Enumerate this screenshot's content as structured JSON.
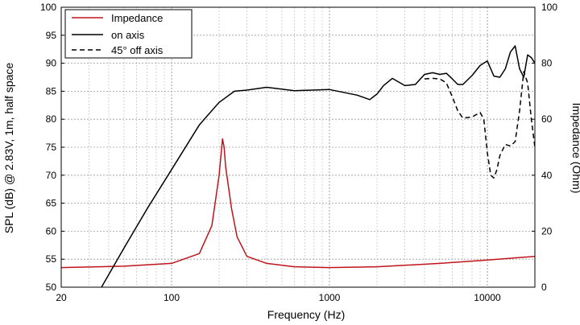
{
  "chart_data": {
    "type": "line",
    "x_scale": "log",
    "xlabel": "Frequency (Hz)",
    "ylabel": "SPL (dB) @ 2.83V, 1m, half space",
    "y2label": "Impedance (Ohm)",
    "xlim": [
      20,
      20000
    ],
    "ylim": [
      50,
      100
    ],
    "y2lim": [
      0,
      100
    ],
    "x_ticks": [
      20,
      100,
      1000,
      10000
    ],
    "x_tick_labels": [
      "20",
      "100",
      "1000",
      "10000"
    ],
    "y_ticks": [
      50,
      55,
      60,
      65,
      70,
      75,
      80,
      85,
      90,
      95,
      100
    ],
    "y_tick_labels": [
      "50",
      "55",
      "60",
      "65",
      "70",
      "75",
      "80",
      "85",
      "90",
      "95",
      "100"
    ],
    "y2_ticks": [
      0,
      20,
      40,
      60,
      80,
      100
    ],
    "y2_tick_labels": [
      "0",
      "20",
      "40",
      "60",
      "80",
      "100"
    ],
    "grid": true,
    "legend_position": "top-left",
    "series": [
      {
        "name": "Impedance",
        "axis": "right",
        "color": "#c0141c",
        "dash": "solid",
        "x": [
          20,
          50,
          100,
          150,
          180,
          200,
          210,
          215,
          220,
          240,
          260,
          300,
          400,
          600,
          1000,
          2000,
          5000,
          10000,
          20000
        ],
        "y": [
          7,
          7.5,
          8.5,
          12,
          22,
          40,
          53,
          50,
          43,
          28,
          18,
          11,
          8.5,
          7.3,
          7,
          7.3,
          8.5,
          9.7,
          11
        ]
      },
      {
        "name": "on axis",
        "axis": "left",
        "color": "#000000",
        "dash": "solid",
        "x": [
          36,
          50,
          70,
          100,
          150,
          200,
          250,
          300,
          400,
          600,
          1000,
          1500,
          1800,
          2000,
          2200,
          2500,
          3000,
          3500,
          4000,
          4500,
          5000,
          5500,
          6000,
          6500,
          7000,
          8000,
          9000,
          10000,
          11000,
          12000,
          13000,
          14000,
          15000,
          16000,
          17000,
          18000,
          19000,
          20000
        ],
        "y": [
          50,
          57,
          64,
          71,
          79,
          83,
          85,
          85.2,
          85.7,
          85.1,
          85.3,
          84.3,
          83.5,
          84.5,
          86,
          87.3,
          86,
          86.2,
          88,
          88.3,
          88,
          88.2,
          87.2,
          86.2,
          86.2,
          87.8,
          89.6,
          90.4,
          87.7,
          87.5,
          89,
          92,
          93.1,
          89,
          87.5,
          91.5,
          91,
          90
        ]
      },
      {
        "name": "45° off axis",
        "axis": "left",
        "color": "#000000",
        "dash": "dashed",
        "x": [
          4000,
          4500,
          5000,
          5500,
          6000,
          6500,
          7000,
          8000,
          9000,
          9500,
          10000,
          10500,
          11000,
          11500,
          12000,
          13000,
          14000,
          15000,
          16000,
          17000,
          18000,
          19000,
          20000
        ],
        "y": [
          87.2,
          87.3,
          87.2,
          86.5,
          84,
          81.5,
          80.2,
          80.4,
          81.2,
          80,
          74,
          70,
          69.5,
          71,
          73.5,
          75.5,
          75.2,
          76,
          81.5,
          88.5,
          86.5,
          80,
          75
        ]
      }
    ]
  }
}
